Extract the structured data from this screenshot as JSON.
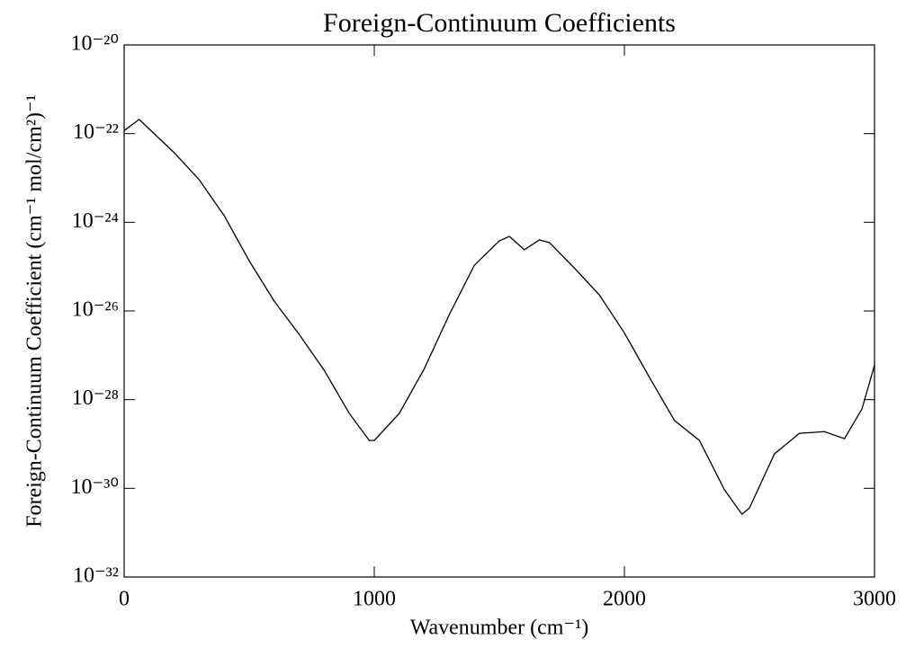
{
  "chart_data": {
    "type": "line",
    "title": "Foreign-Continuum Coefficients",
    "xlabel": "Wavenumber (cm⁻¹)",
    "ylabel": "Foreign-Continuum Coefficient (cm⁻¹ mol/cm²)⁻¹",
    "x": [
      0,
      60,
      200,
      300,
      400,
      500,
      600,
      700,
      800,
      900,
      980,
      1000,
      1100,
      1200,
      1300,
      1400,
      1500,
      1540,
      1600,
      1660,
      1700,
      1800,
      1900,
      2000,
      2100,
      2200,
      2300,
      2400,
      2470,
      2500,
      2600,
      2700,
      2800,
      2880,
      2950,
      3000
    ],
    "series": [
      {
        "color": "#000000",
        "values": [
          1.17e-22,
          2.09e-22,
          3.72e-23,
          9.12e-24,
          1.41e-24,
          1.35e-25,
          1.66e-26,
          2.95e-27,
          4.57e-28,
          4.9e-29,
          1.2e-29,
          1.2e-29,
          4.9e-29,
          5e-28,
          8.3e-27,
          1.07e-25,
          3.8e-25,
          4.8e-25,
          2.4e-25,
          4e-25,
          3.5e-25,
          9.3e-26,
          2.3e-26,
          3.2e-27,
          3.2e-28,
          3.4e-29,
          1.2e-29,
          9.3e-31,
          2.6e-31,
          3.6e-31,
          6e-30,
          1.74e-29,
          1.9e-29,
          1.32e-29,
          6.2e-29,
          6e-28
        ]
      }
    ],
    "xlim": [
      0,
      3000
    ],
    "xticks": [
      0,
      1000,
      2000,
      3000
    ],
    "ylim": [
      1e-32,
      1e-20
    ],
    "log_y": true,
    "yticks": [
      {
        "value": 1e-20,
        "label": "10⁻²⁰"
      },
      {
        "value": 1e-22,
        "label": "10⁻²²"
      },
      {
        "value": 1e-24,
        "label": "10⁻²⁴"
      },
      {
        "value": 1e-26,
        "label": "10⁻²⁶"
      },
      {
        "value": 1e-28,
        "label": "10⁻²⁸"
      },
      {
        "value": 1e-30,
        "label": "10⁻³⁰"
      },
      {
        "value": 1e-32,
        "label": "10⁻³²"
      }
    ]
  }
}
